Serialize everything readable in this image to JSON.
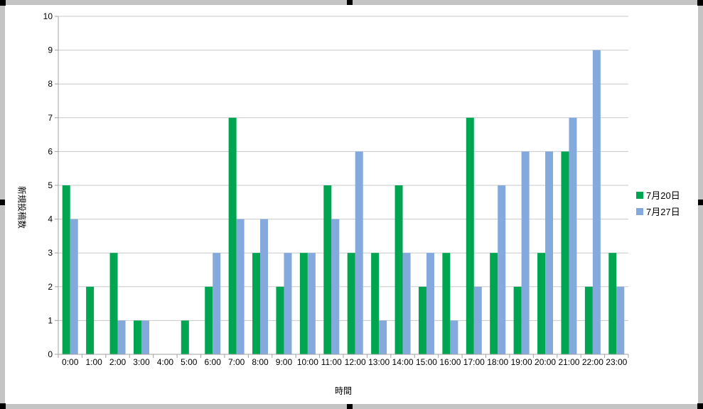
{
  "chart_data": {
    "type": "bar",
    "title": "",
    "categories": [
      "0:00",
      "1:00",
      "2:00",
      "3:00",
      "4:00",
      "5:00",
      "6:00",
      "7:00",
      "8:00",
      "9:00",
      "10:00",
      "11:00",
      "12:00",
      "13:00",
      "14:00",
      "15:00",
      "16:00",
      "17:00",
      "18:00",
      "19:00",
      "20:00",
      "21:00",
      "22:00",
      "23:00"
    ],
    "series": [
      {
        "name": "7月20日",
        "color": "#00A551",
        "values": [
          5,
          2,
          3,
          1,
          0,
          1,
          2,
          7,
          3,
          2,
          3,
          5,
          3,
          3,
          5,
          2,
          3,
          7,
          3,
          2,
          3,
          6,
          2,
          3
        ]
      },
      {
        "name": "7月27日",
        "color": "#84A9DC",
        "values": [
          4,
          0,
          1,
          1,
          0,
          0,
          3,
          4,
          4,
          3,
          3,
          4,
          6,
          1,
          3,
          3,
          1,
          2,
          5,
          6,
          6,
          7,
          9,
          2
        ]
      }
    ],
    "xlabel": "時間",
    "ylabel": "新規投稿数",
    "ylim": [
      0,
      10
    ],
    "ytick_step": 1,
    "grid": true,
    "legend_position": "right"
  }
}
